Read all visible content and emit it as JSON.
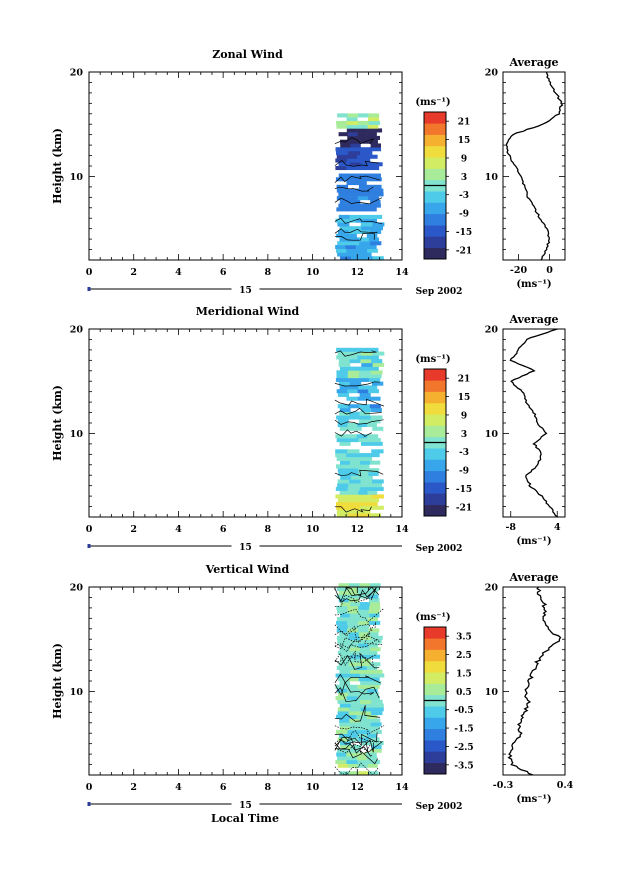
{
  "figure": {
    "date_label": "Sep 2002",
    "date_day": "15",
    "xlabel": "Local Time",
    "ylabel": "Height (km)",
    "unit_label": "(ms⁻¹)",
    "avg_title": "Average"
  },
  "colors": {
    "background": "#ffffff",
    "axis": "#000000",
    "scale": [
      "#2e2a5e",
      "#2d3d9a",
      "#2a58c8",
      "#2f7fe0",
      "#37a6ea",
      "#4ecbe9",
      "#7fe3cf",
      "#a8ec9a",
      "#d2ec63",
      "#f0dc3c",
      "#f6b030",
      "#f2772c",
      "#e83a2a"
    ]
  },
  "chart_data": [
    {
      "type": "heatmap",
      "title": "Zonal Wind",
      "xlabel": "Local Time",
      "ylabel": "Height (km)",
      "x_ticks": [
        0,
        2,
        4,
        6,
        8,
        10,
        12,
        14
      ],
      "y_ticks": [
        10,
        20
      ],
      "xlim": [
        0,
        14
      ],
      "ylim": [
        2,
        20
      ],
      "data_time_range": [
        11.0,
        13.2
      ],
      "data_height_range": [
        2,
        16
      ],
      "colorbar": {
        "unit": "(ms⁻¹)",
        "ticks": [
          21,
          15,
          9,
          3,
          -3,
          -9,
          -15,
          -21
        ],
        "range": [
          -24,
          24
        ]
      },
      "profile": {
        "title": "Average",
        "x_ticks": [
          -20,
          0
        ],
        "xlim": [
          -30,
          10
        ],
        "y_ticks": [
          10,
          20
        ],
        "heights": [
          2,
          3,
          4,
          5,
          6,
          7,
          8,
          9,
          10,
          11,
          12,
          13,
          14,
          15,
          16,
          17,
          18,
          19,
          20
        ],
        "values": [
          -5,
          -2,
          0,
          -2,
          -6,
          -10,
          -14,
          -16,
          -18,
          -22,
          -26,
          -28,
          -24,
          -4,
          6,
          8,
          4,
          0,
          -2
        ]
      }
    },
    {
      "type": "heatmap",
      "title": "Meridional Wind",
      "xlabel": "Local Time",
      "ylabel": "Height (km)",
      "x_ticks": [
        0,
        2,
        4,
        6,
        8,
        10,
        12,
        14
      ],
      "y_ticks": [
        10,
        20
      ],
      "xlim": [
        0,
        14
      ],
      "ylim": [
        2,
        20
      ],
      "data_time_range": [
        11.0,
        13.2
      ],
      "data_height_range": [
        2,
        18
      ],
      "colorbar": {
        "unit": "(ms⁻¹)",
        "ticks": [
          21,
          15,
          9,
          3,
          -3,
          -9,
          -15,
          -21
        ],
        "range": [
          -24,
          24
        ]
      },
      "profile": {
        "title": "Average",
        "x_ticks": [
          -8,
          4
        ],
        "xlim": [
          -10,
          6
        ],
        "y_ticks": [
          10,
          20
        ],
        "heights": [
          2,
          3,
          4,
          5,
          6,
          7,
          8,
          9,
          10,
          11,
          12,
          13,
          14,
          15,
          16,
          17,
          18,
          19,
          20
        ],
        "values": [
          4,
          2,
          0,
          -3,
          -4,
          -1,
          0,
          -2,
          1,
          -1,
          -2,
          -4,
          -5,
          -8,
          -2,
          -8,
          -6,
          -4,
          4
        ]
      }
    },
    {
      "type": "heatmap",
      "title": "Vertical Wind",
      "xlabel": "Local Time",
      "ylabel": "Height (km)",
      "x_ticks": [
        0,
        2,
        4,
        6,
        8,
        10,
        12,
        14
      ],
      "y_ticks": [
        10,
        20
      ],
      "xlim": [
        0,
        14
      ],
      "ylim": [
        2,
        20
      ],
      "data_time_range": [
        11.0,
        13.2
      ],
      "data_height_range": [
        2,
        20
      ],
      "colorbar": {
        "unit": "(ms⁻¹)",
        "ticks": [
          3.5,
          2.5,
          1.5,
          0.5,
          -0.5,
          -1.5,
          -2.5,
          -3.5
        ],
        "range": [
          -4,
          4
        ]
      },
      "profile": {
        "title": "Average",
        "x_ticks": [
          -0.3,
          0.4
        ],
        "xlim": [
          -0.3,
          0.4
        ],
        "y_ticks": [
          10,
          20
        ],
        "heights": [
          2,
          3,
          4,
          5,
          6,
          7,
          8,
          9,
          10,
          11,
          12,
          13,
          14,
          15,
          16,
          17,
          18,
          19,
          20
        ],
        "values": [
          0.05,
          -0.2,
          -0.22,
          -0.18,
          -0.1,
          -0.12,
          -0.05,
          -0.02,
          -0.04,
          0.0,
          0.05,
          0.1,
          0.2,
          0.35,
          0.22,
          0.15,
          0.18,
          0.12,
          0.1
        ]
      }
    }
  ]
}
